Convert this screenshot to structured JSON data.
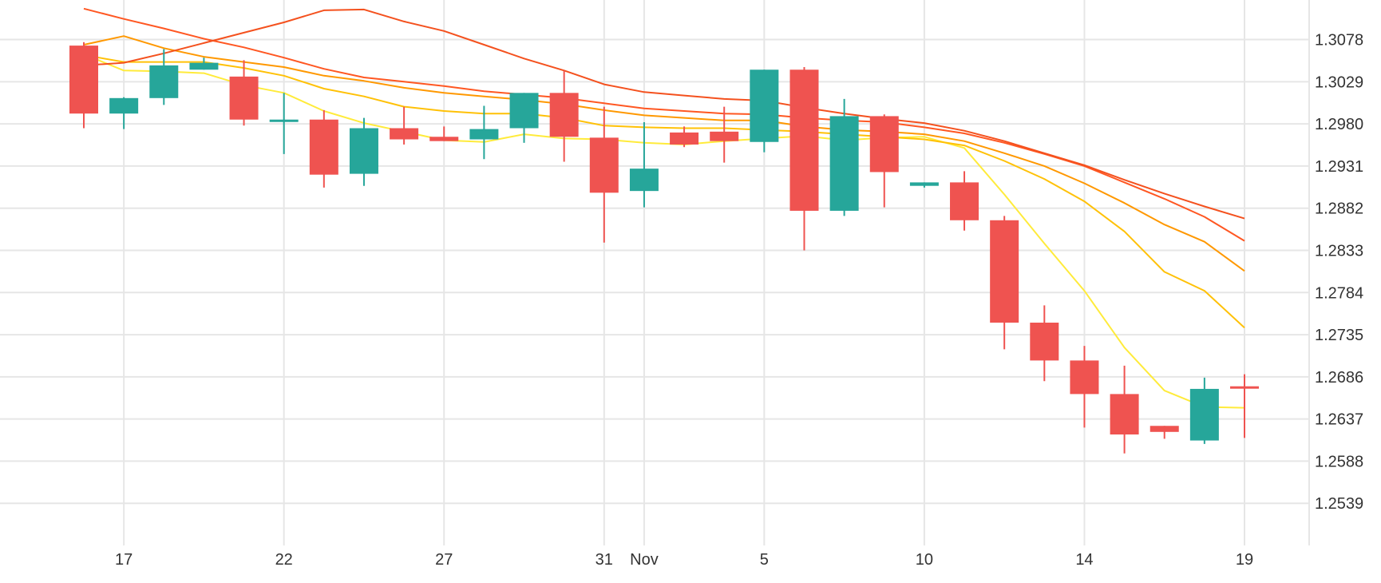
{
  "chart_data": {
    "type": "candlestick",
    "title": "",
    "xlabel": "",
    "ylabel": "",
    "x_tick_labels": [
      "17",
      "22",
      "27",
      "31",
      "Nov",
      "5",
      "10",
      "14",
      "19"
    ],
    "y_tick_labels": [
      "1.3078",
      "1.3029",
      "1.2980",
      "1.2931",
      "1.2882",
      "1.2833",
      "1.2784",
      "1.2735",
      "1.2686",
      "1.2637",
      "1.2588",
      "1.2539"
    ],
    "ylim": [
      1.249,
      1.3124
    ],
    "grid": true,
    "legend": "none",
    "colors": {
      "up": "#26a69a",
      "down": "#ef5350",
      "grid": "#e6e6e6",
      "axis_text": "#333333",
      "ma_lines": [
        "#ffeb3b",
        "#ffc107",
        "#ff9800",
        "#ff5722",
        "#f4511e"
      ]
    },
    "dates": [
      "Oct 16",
      "Oct 17",
      "Oct 18",
      "Oct 19",
      "Oct 21",
      "Oct 22",
      "Oct 23",
      "Oct 24",
      "Oct 25",
      "Oct 26",
      "Oct 28",
      "Oct 29",
      "Oct 30",
      "Oct 31",
      "Nov 1",
      "Nov 2",
      "Nov 4",
      "Nov 5",
      "Nov 6",
      "Nov 7",
      "Nov 8",
      "Nov 10",
      "Nov 11",
      "Nov 12",
      "Nov 13",
      "Nov 14",
      "Nov 15",
      "Nov 16",
      "Nov 18",
      "Nov 19"
    ],
    "candles": [
      {
        "o": 1.3071,
        "h": 1.3075,
        "l": 1.2975,
        "c": 1.2992
      },
      {
        "o": 1.2992,
        "h": 1.3011,
        "l": 1.2974,
        "c": 1.301
      },
      {
        "o": 1.301,
        "h": 1.3067,
        "l": 1.3002,
        "c": 1.3048
      },
      {
        "o": 1.3043,
        "h": 1.3057,
        "l": 1.3043,
        "c": 1.3051
      },
      {
        "o": 1.3035,
        "h": 1.3054,
        "l": 1.2978,
        "c": 1.2985
      },
      {
        "o": 1.2983,
        "h": 1.3016,
        "l": 1.2945,
        "c": 1.2985
      },
      {
        "o": 1.2985,
        "h": 1.2996,
        "l": 1.2906,
        "c": 1.2921
      },
      {
        "o": 1.2922,
        "h": 1.2987,
        "l": 1.2908,
        "c": 1.2975
      },
      {
        "o": 1.2975,
        "h": 1.3,
        "l": 1.2956,
        "c": 1.2962
      },
      {
        "o": 1.2965,
        "h": 1.2977,
        "l": 1.296,
        "c": 1.296
      },
      {
        "o": 1.2962,
        "h": 1.3001,
        "l": 1.2939,
        "c": 1.2974
      },
      {
        "o": 1.2975,
        "h": 1.3016,
        "l": 1.2958,
        "c": 1.3016
      },
      {
        "o": 1.3016,
        "h": 1.3042,
        "l": 1.2936,
        "c": 1.2965
      },
      {
        "o": 1.2964,
        "h": 1.3,
        "l": 1.2842,
        "c": 1.29
      },
      {
        "o": 1.2902,
        "h": 1.2982,
        "l": 1.2883,
        "c": 1.2928
      },
      {
        "o": 1.297,
        "h": 1.2977,
        "l": 1.2953,
        "c": 1.2956
      },
      {
        "o": 1.2971,
        "h": 1.3,
        "l": 1.2935,
        "c": 1.296
      },
      {
        "o": 1.2959,
        "h": 1.3043,
        "l": 1.2947,
        "c": 1.3043
      },
      {
        "o": 1.3043,
        "h": 1.3046,
        "l": 1.2833,
        "c": 1.2879
      },
      {
        "o": 1.2879,
        "h": 1.3009,
        "l": 1.2873,
        "c": 1.2989
      },
      {
        "o": 1.2989,
        "h": 1.2991,
        "l": 1.2883,
        "c": 1.2924
      },
      {
        "o": 1.2908,
        "h": 1.2912,
        "l": 1.2906,
        "c": 1.2912
      },
      {
        "o": 1.2912,
        "h": 1.2925,
        "l": 1.2856,
        "c": 1.2868
      },
      {
        "o": 1.2868,
        "h": 1.2873,
        "l": 1.2718,
        "c": 1.2749
      },
      {
        "o": 1.2749,
        "h": 1.2769,
        "l": 1.2681,
        "c": 1.2705
      },
      {
        "o": 1.2705,
        "h": 1.2722,
        "l": 1.2627,
        "c": 1.2666
      },
      {
        "o": 1.2666,
        "h": 1.2699,
        "l": 1.2597,
        "c": 1.2619
      },
      {
        "o": 1.2629,
        "h": 1.2629,
        "l": 1.2614,
        "c": 1.2622
      },
      {
        "o": 1.2612,
        "h": 1.2685,
        "l": 1.2608,
        "c": 1.2672
      },
      {
        "o": 1.2675,
        "h": 1.2689,
        "l": 1.2615,
        "c": 1.2673
      }
    ],
    "moving_averages": [
      {
        "color": "#ffeb3b",
        "values": [
          1.3061,
          1.3042,
          1.3041,
          1.3039,
          1.3025,
          1.3016,
          1.2995,
          1.2981,
          1.2971,
          1.2961,
          1.2959,
          1.2968,
          1.2963,
          1.2962,
          1.2958,
          1.2956,
          1.296,
          1.2963,
          1.2966,
          1.2961,
          1.2964,
          1.2965,
          1.2952,
          1.2898,
          1.2841,
          1.2786,
          1.272,
          1.267,
          1.2651,
          1.265
        ]
      },
      {
        "color": "#ffc107",
        "values": [
          1.306,
          1.3052,
          1.3052,
          1.3052,
          1.3045,
          1.3036,
          1.3021,
          1.3012,
          1.3,
          1.2995,
          1.2992,
          1.2992,
          1.2987,
          1.2978,
          1.2976,
          1.2975,
          1.2975,
          1.2973,
          1.2971,
          1.2968,
          1.2965,
          1.2962,
          1.2955,
          1.2937,
          1.2916,
          1.289,
          1.2855,
          1.2808,
          1.2786,
          1.2743
        ]
      },
      {
        "color": "#ff9800",
        "values": [
          1.3072,
          1.3082,
          1.3068,
          1.3058,
          1.3052,
          1.3046,
          1.3036,
          1.303,
          1.3022,
          1.3016,
          1.3012,
          1.3008,
          1.3003,
          1.2996,
          1.299,
          1.2987,
          1.2984,
          1.2984,
          1.2977,
          1.2973,
          1.2971,
          1.2968,
          1.296,
          1.2946,
          1.2931,
          1.2911,
          1.2888,
          1.2863,
          1.2843,
          1.2809
        ]
      },
      {
        "color": "#ff5722",
        "values": [
          1.3114,
          1.3102,
          1.3091,
          1.3079,
          1.3069,
          1.3057,
          1.3044,
          1.3034,
          1.3029,
          1.3024,
          1.3018,
          1.3014,
          1.301,
          1.3004,
          1.2998,
          1.2995,
          1.2992,
          1.2991,
          1.2987,
          1.2984,
          1.2982,
          1.2976,
          1.2969,
          1.2958,
          1.2945,
          1.2931,
          1.2912,
          1.2893,
          1.2872,
          1.2844
        ]
      },
      {
        "color": "#f4511e",
        "values": [
          1.3048,
          1.3051,
          1.3062,
          1.3074,
          1.3086,
          1.3098,
          1.3112,
          1.3113,
          1.3099,
          1.3088,
          1.3072,
          1.3056,
          1.3042,
          1.3026,
          1.3017,
          1.3013,
          1.3009,
          1.3007,
          1.2999,
          1.2992,
          1.2986,
          1.2981,
          1.2972,
          1.296,
          1.2946,
          1.2932,
          1.2915,
          1.2899,
          1.2884,
          1.287
        ]
      }
    ]
  }
}
